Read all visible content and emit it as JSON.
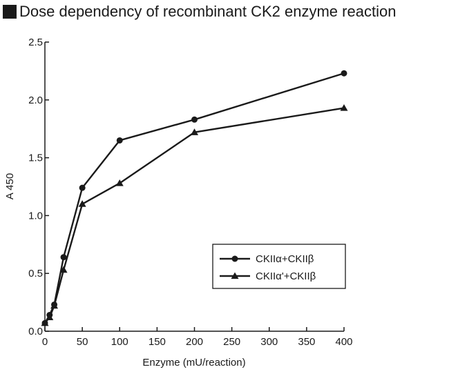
{
  "chart_data": {
    "type": "line",
    "title": "Dose dependency of recombinant CK2 enzyme reaction",
    "xlabel": "Enzyme (mU/reaction)",
    "ylabel": "A 450",
    "xlim": [
      0,
      400
    ],
    "ylim": [
      0,
      2.5
    ],
    "x_ticks": [
      0,
      50,
      100,
      150,
      200,
      250,
      300,
      350,
      400
    ],
    "y_ticks": [
      0,
      0.5,
      1.0,
      1.5,
      2.0,
      2.5
    ],
    "x_tick_labels": [
      "0",
      "50",
      "100",
      "150",
      "200",
      "250",
      "300",
      "350",
      "400"
    ],
    "y_tick_labels": [
      "0.0",
      "0.5",
      "1.0",
      "1.5",
      "2.0",
      "2.5"
    ],
    "grid": false,
    "legend_position": "lower-right",
    "series": [
      {
        "name": "CKIIα+CKIIβ",
        "marker": "circle",
        "color": "#1a1a1a",
        "x": [
          0,
          6.25,
          12.5,
          25,
          50,
          100,
          200,
          400
        ],
        "y": [
          0.07,
          0.14,
          0.23,
          0.64,
          1.24,
          1.65,
          1.83,
          2.23
        ]
      },
      {
        "name": "CKIIα'+CKIIβ",
        "marker": "triangle",
        "color": "#1a1a1a",
        "x": [
          0,
          6.25,
          12.5,
          25,
          50,
          100,
          200,
          400
        ],
        "y": [
          0.07,
          0.12,
          0.22,
          0.53,
          1.1,
          1.28,
          1.72,
          1.93
        ]
      }
    ]
  }
}
